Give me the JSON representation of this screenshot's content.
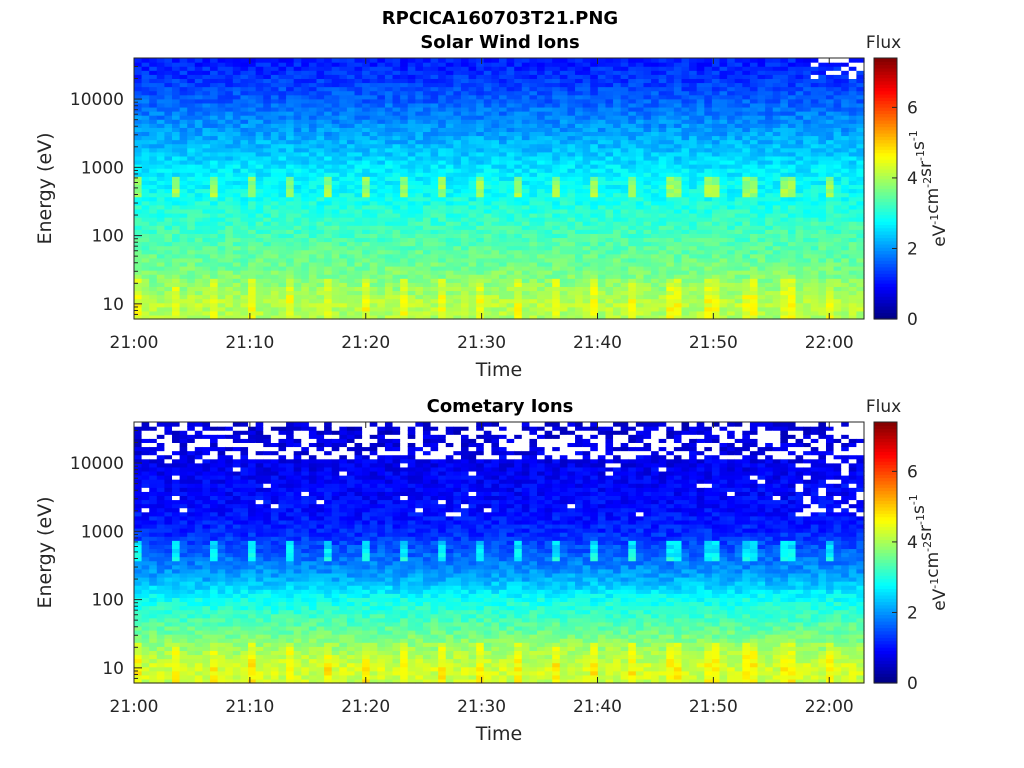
{
  "file_title": "RPCICA160703T21.PNG",
  "colormap": "jet",
  "chart_data": [
    {
      "type": "heatmap",
      "title": "Solar Wind Ions",
      "xlabel": "Time",
      "ylabel": "Energy (eV)",
      "x_range": [
        "21:00",
        "22:03"
      ],
      "x_ticks": [
        "21:00",
        "21:10",
        "21:20",
        "21:30",
        "21:40",
        "21:50",
        "22:00"
      ],
      "y_scale": "log",
      "y_range": [
        6,
        40000
      ],
      "y_ticks": [
        "10",
        "100",
        "1000",
        "10000"
      ],
      "colorbar": {
        "title": "Flux",
        "label": "eV-1cm-2sr-1s-1",
        "ticks": [
          "0",
          "2",
          "4",
          "6"
        ],
        "range": [
          0,
          7.4
        ]
      },
      "flux_profile": {
        "energy_eV": [
          6,
          10,
          20,
          50,
          100,
          200,
          500,
          1000,
          2000,
          5000,
          10000,
          20000,
          40000
        ],
        "flux": [
          4.0,
          4.1,
          3.8,
          3.5,
          3.3,
          3.1,
          2.8,
          2.6,
          2.3,
          1.9,
          1.6,
          1.3,
          1.1
        ]
      },
      "notes": "Periodic enhanced flux near 500 eV roughly every 3 minutes"
    },
    {
      "type": "heatmap",
      "title": "Cometary Ions",
      "xlabel": "Time",
      "ylabel": "Energy (eV)",
      "x_range": [
        "21:00",
        "22:03"
      ],
      "x_ticks": [
        "21:00",
        "21:10",
        "21:20",
        "21:30",
        "21:40",
        "21:50",
        "22:00"
      ],
      "y_scale": "log",
      "y_range": [
        6,
        40000
      ],
      "y_ticks": [
        "10",
        "100",
        "1000",
        "10000"
      ],
      "colorbar": {
        "title": "Flux",
        "label": "eV-1cm-2sr-1s-1",
        "ticks": [
          "0",
          "2",
          "4",
          "6"
        ],
        "range": [
          0,
          7.4
        ]
      },
      "flux_profile": {
        "energy_eV": [
          6,
          10,
          20,
          50,
          100,
          200,
          500,
          1000,
          2000,
          5000,
          10000,
          20000,
          40000
        ],
        "flux": [
          4.2,
          4.3,
          3.9,
          3.3,
          2.9,
          2.2,
          1.6,
          1.2,
          1.0,
          0.9,
          0.8,
          0.7,
          0.6
        ]
      },
      "notes": "Data gaps (white) above ~10000 eV; enhanced flux near 500 eV roughly every 3 minutes"
    }
  ]
}
